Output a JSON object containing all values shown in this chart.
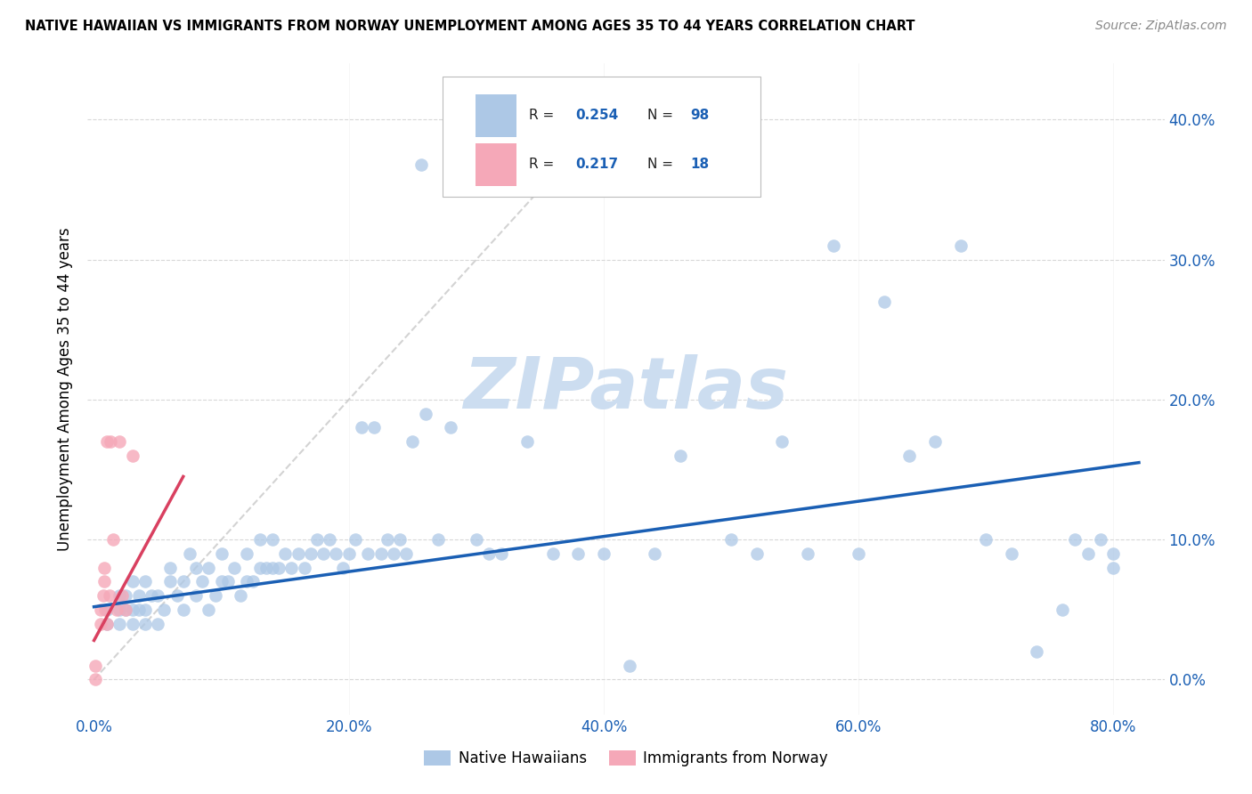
{
  "title": "NATIVE HAWAIIAN VS IMMIGRANTS FROM NORWAY UNEMPLOYMENT AMONG AGES 35 TO 44 YEARS CORRELATION CHART",
  "source": "Source: ZipAtlas.com",
  "ylabel_label": "Unemployment Among Ages 35 to 44 years",
  "legend_label1": "Native Hawaiians",
  "legend_label2": "Immigrants from Norway",
  "R1": 0.254,
  "N1": 98,
  "R2": 0.217,
  "N2": 18,
  "color_blue": "#adc8e6",
  "color_pink": "#f5a8b8",
  "trendline_blue": "#1a5fb4",
  "trendline_pink": "#d94060",
  "blue_scatter_x": [
    0.01,
    0.01,
    0.02,
    0.02,
    0.02,
    0.025,
    0.025,
    0.03,
    0.03,
    0.03,
    0.035,
    0.035,
    0.04,
    0.04,
    0.04,
    0.045,
    0.05,
    0.05,
    0.055,
    0.06,
    0.06,
    0.065,
    0.07,
    0.07,
    0.075,
    0.08,
    0.08,
    0.085,
    0.09,
    0.09,
    0.095,
    0.1,
    0.1,
    0.105,
    0.11,
    0.115,
    0.12,
    0.12,
    0.125,
    0.13,
    0.13,
    0.135,
    0.14,
    0.14,
    0.145,
    0.15,
    0.155,
    0.16,
    0.165,
    0.17,
    0.175,
    0.18,
    0.185,
    0.19,
    0.195,
    0.2,
    0.205,
    0.21,
    0.215,
    0.22,
    0.225,
    0.23,
    0.235,
    0.24,
    0.245,
    0.25,
    0.26,
    0.27,
    0.28,
    0.3,
    0.31,
    0.32,
    0.34,
    0.36,
    0.38,
    0.4,
    0.42,
    0.44,
    0.46,
    0.5,
    0.52,
    0.54,
    0.56,
    0.58,
    0.6,
    0.62,
    0.64,
    0.66,
    0.68,
    0.7,
    0.72,
    0.74,
    0.76,
    0.77,
    0.78,
    0.79,
    0.8,
    0.8
  ],
  "blue_scatter_y": [
    0.04,
    0.05,
    0.04,
    0.05,
    0.06,
    0.05,
    0.06,
    0.04,
    0.05,
    0.07,
    0.05,
    0.06,
    0.04,
    0.05,
    0.07,
    0.06,
    0.04,
    0.06,
    0.05,
    0.07,
    0.08,
    0.06,
    0.05,
    0.07,
    0.09,
    0.06,
    0.08,
    0.07,
    0.05,
    0.08,
    0.06,
    0.07,
    0.09,
    0.07,
    0.08,
    0.06,
    0.07,
    0.09,
    0.07,
    0.08,
    0.1,
    0.08,
    0.08,
    0.1,
    0.08,
    0.09,
    0.08,
    0.09,
    0.08,
    0.09,
    0.1,
    0.09,
    0.1,
    0.09,
    0.08,
    0.09,
    0.1,
    0.18,
    0.09,
    0.18,
    0.09,
    0.1,
    0.09,
    0.1,
    0.09,
    0.17,
    0.19,
    0.1,
    0.18,
    0.1,
    0.09,
    0.09,
    0.17,
    0.09,
    0.09,
    0.09,
    0.01,
    0.09,
    0.16,
    0.1,
    0.09,
    0.17,
    0.09,
    0.31,
    0.09,
    0.27,
    0.16,
    0.17,
    0.31,
    0.1,
    0.09,
    0.02,
    0.05,
    0.1,
    0.09,
    0.1,
    0.09,
    0.08
  ],
  "pink_scatter_x": [
    0.001,
    0.001,
    0.005,
    0.005,
    0.007,
    0.008,
    0.008,
    0.009,
    0.01,
    0.01,
    0.012,
    0.013,
    0.015,
    0.018,
    0.02,
    0.022,
    0.025,
    0.03
  ],
  "pink_scatter_y": [
    0.0,
    0.01,
    0.04,
    0.05,
    0.06,
    0.07,
    0.08,
    0.05,
    0.04,
    0.17,
    0.06,
    0.17,
    0.1,
    0.05,
    0.17,
    0.06,
    0.05,
    0.16
  ],
  "x_tick_vals": [
    0.0,
    0.2,
    0.4,
    0.6,
    0.8
  ],
  "y_tick_vals": [
    0.0,
    0.1,
    0.2,
    0.3,
    0.4
  ],
  "xlim": [
    -0.005,
    0.84
  ],
  "ylim": [
    -0.025,
    0.44
  ],
  "watermark_text": "ZIPatlas",
  "watermark_color": "#ccddf0",
  "bg_color": "white"
}
